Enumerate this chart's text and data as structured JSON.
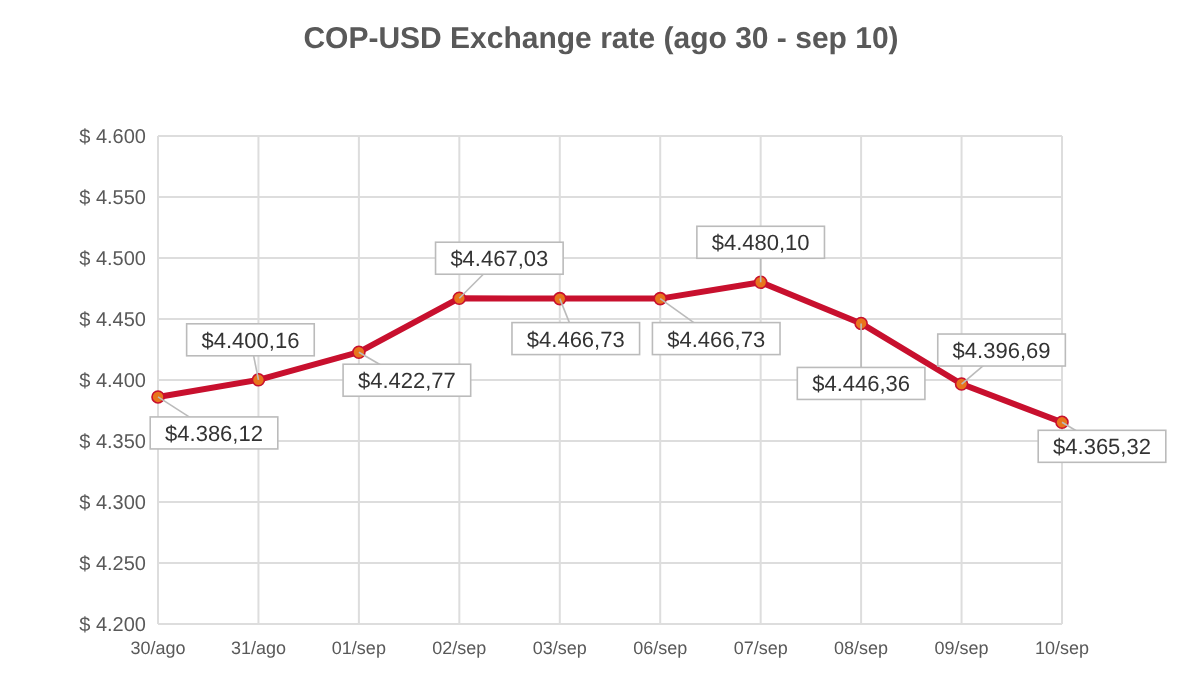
{
  "chart_data": {
    "type": "line",
    "title": "COP-USD Exchange rate (ago 30 - sep 10)",
    "categories": [
      "30/ago",
      "31/ago",
      "01/sep",
      "02/sep",
      "03/sep",
      "06/sep",
      "07/sep",
      "08/sep",
      "09/sep",
      "10/sep"
    ],
    "series": [
      {
        "color": "#c8102e",
        "values": [
          4386.12,
          4400.16,
          4422.77,
          4467.03,
          4466.73,
          4466.73,
          4480.1,
          4446.36,
          4396.69,
          4365.32
        ],
        "value_labels": [
          "$4.386,12",
          "$4.400,16",
          "$4.422,77",
          "$4.467,03",
          "$4.466,73",
          "$4.466,73",
          "$4.480,10",
          "$4.446,36",
          "$4.396,69",
          "$4.365,32"
        ]
      }
    ],
    "ylim": [
      4200,
      4600
    ],
    "yticks": [
      {
        "value": 4200,
        "label": "$ 4.200"
      },
      {
        "value": 4250,
        "label": "$ 4.250"
      },
      {
        "value": 4300,
        "label": "$ 4.300"
      },
      {
        "value": 4350,
        "label": "$ 4.350"
      },
      {
        "value": 4400,
        "label": "$ 4.400"
      },
      {
        "value": 4450,
        "label": "$ 4.450"
      },
      {
        "value": 4500,
        "label": "$ 4.500"
      },
      {
        "value": 4550,
        "label": "$ 4.550"
      },
      {
        "value": 4600,
        "label": "$ 4.600"
      }
    ],
    "grid": true,
    "marker": "circle",
    "line_style": "solid"
  }
}
